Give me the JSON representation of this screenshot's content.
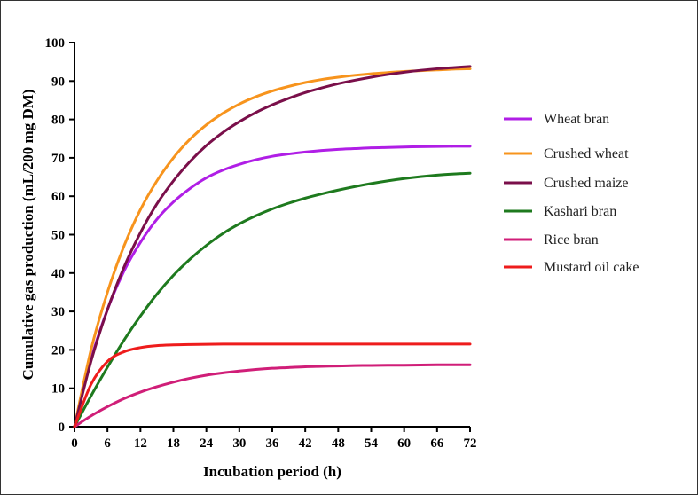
{
  "chart_data": {
    "type": "line",
    "title": "",
    "xlabel": "Incubation period (h)",
    "ylabel": "Cumulative gas production (mL/200 mg DM)",
    "xlim": [
      0,
      72
    ],
    "ylim": [
      0,
      100
    ],
    "xticks": [
      "0",
      "6",
      "12",
      "18",
      "24",
      "30",
      "36",
      "42",
      "48",
      "54",
      "60",
      "66",
      "72"
    ],
    "yticks": [
      "0",
      "10",
      "20",
      "30",
      "40",
      "50",
      "60",
      "70",
      "80",
      "90",
      "100"
    ],
    "grid": false,
    "legend_position": "right",
    "x": [
      0,
      3,
      6,
      9,
      12,
      15,
      18,
      21,
      24,
      27,
      30,
      33,
      36,
      39,
      42,
      45,
      48,
      51,
      54,
      57,
      60,
      63,
      66,
      69,
      72
    ],
    "series": [
      {
        "name": "Wheat bran",
        "color": "#b01ee6",
        "values": [
          0,
          17.5,
          30.5,
          40.5,
          48.0,
          54.0,
          58.5,
          62.0,
          64.8,
          66.8,
          68.3,
          69.5,
          70.4,
          71.0,
          71.5,
          71.9,
          72.2,
          72.4,
          72.6,
          72.7,
          72.8,
          72.9,
          72.95,
          73.0,
          73.0
        ]
      },
      {
        "name": "Crushed wheat",
        "color": "#f7941d",
        "values": [
          0,
          20.0,
          35.0,
          47.0,
          56.5,
          64.0,
          70.0,
          74.8,
          78.6,
          81.6,
          84.0,
          85.9,
          87.4,
          88.6,
          89.6,
          90.4,
          91.0,
          91.5,
          91.9,
          92.2,
          92.5,
          92.7,
          92.9,
          93.1,
          93.2
        ]
      },
      {
        "name": "Crushed maize",
        "color": "#7a0f4a",
        "values": [
          0,
          17.0,
          30.5,
          41.5,
          50.5,
          58.0,
          64.0,
          69.0,
          73.2,
          76.6,
          79.4,
          81.8,
          83.8,
          85.5,
          87.0,
          88.2,
          89.3,
          90.2,
          91.0,
          91.7,
          92.3,
          92.8,
          93.2,
          93.5,
          93.8
        ]
      },
      {
        "name": "Kashari bran",
        "color": "#1e7a1e",
        "values": [
          0,
          8.0,
          15.5,
          22.5,
          28.8,
          34.5,
          39.4,
          43.6,
          47.2,
          50.3,
          52.8,
          54.9,
          56.7,
          58.2,
          59.5,
          60.6,
          61.6,
          62.5,
          63.3,
          64.0,
          64.6,
          65.1,
          65.5,
          65.8,
          66.0
        ]
      },
      {
        "name": "Rice bran",
        "color": "#d01e78",
        "values": [
          0,
          2.8,
          5.2,
          7.3,
          9.0,
          10.4,
          11.6,
          12.6,
          13.4,
          14.0,
          14.5,
          14.9,
          15.2,
          15.4,
          15.6,
          15.7,
          15.8,
          15.9,
          15.95,
          16.0,
          16.0,
          16.05,
          16.1,
          16.1,
          16.1
        ]
      },
      {
        "name": "Mustard oil cake",
        "color": "#ee1c1c",
        "values": [
          0,
          11.0,
          17.0,
          19.5,
          20.6,
          21.1,
          21.3,
          21.4,
          21.45,
          21.5,
          21.5,
          21.5,
          21.5,
          21.5,
          21.5,
          21.5,
          21.5,
          21.5,
          21.5,
          21.5,
          21.5,
          21.5,
          21.5,
          21.5,
          21.5
        ]
      }
    ]
  }
}
